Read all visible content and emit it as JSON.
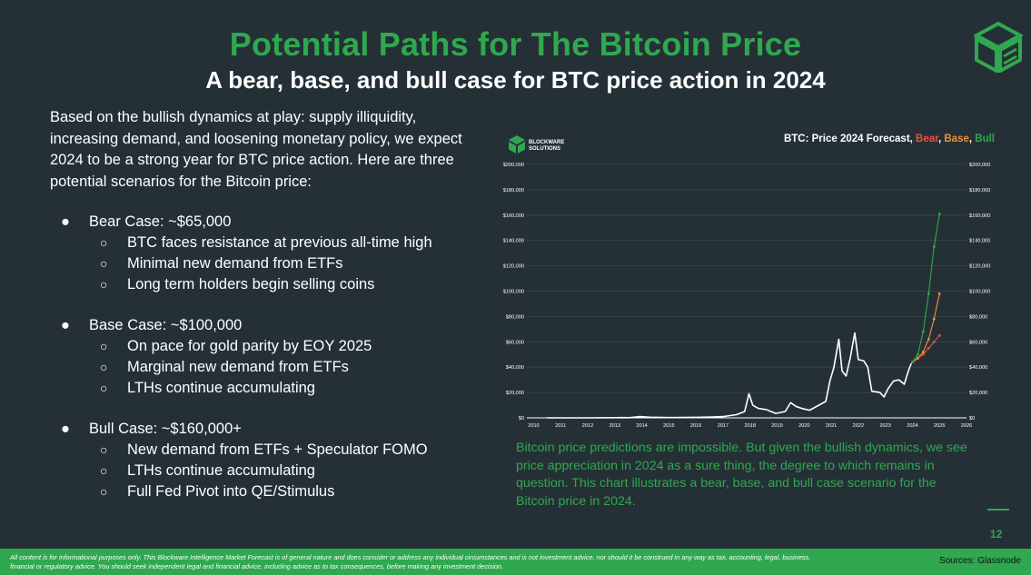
{
  "header": {
    "title": "Potential Paths for The Bitcoin Price",
    "subtitle": "A bear, base, and bull case for BTC price action in 2024",
    "logo_icon": "blockware-cube-logo-icon"
  },
  "intro": "Based on the bullish dynamics at play: supply illiquidity, increasing demand, and loosening monetary policy, we expect 2024 to be a strong year for BTC price action. Here are three potential scenarios for the Bitcoin price:",
  "cases": [
    {
      "title": "Bear Case: ~$65,000",
      "points": [
        "BTC faces resistance at previous all-time high",
        "Minimal new demand from ETFs",
        "Long term holders begin selling coins"
      ]
    },
    {
      "title": "Base Case: ~$100,000",
      "points": [
        "On pace for gold parity by EOY 2025",
        "Marginal new demand from ETFs",
        "LTHs continue accumulating"
      ]
    },
    {
      "title": "Bull Case: ~$160,000+",
      "points": [
        "New demand from ETFs + Speculator FOMO",
        "LTHs continue accumulating",
        "Full Fed Pivot into QE/Stimulus"
      ]
    }
  ],
  "chart_data": {
    "type": "line",
    "brand": [
      "BLOCKWARE",
      "SOLUTIONS"
    ],
    "title_prefix": "BTC: Price 2024 Forecast, ",
    "title_sep": ", ",
    "yticks": [
      "$0",
      "$20,000",
      "$40,000",
      "$60,000",
      "$80,000",
      "$100,000",
      "$120,000",
      "$140,000",
      "$160,000",
      "$180,000",
      "$200,000"
    ],
    "xticks": [
      "2010",
      "2011",
      "2012",
      "2013",
      "2014",
      "2015",
      "2016",
      "2017",
      "2018",
      "2019",
      "2020",
      "2021",
      "2022",
      "2023",
      "2024",
      "2025",
      "2026"
    ],
    "ylim": [
      0,
      200000
    ],
    "xlim": [
      2009.75,
      2026
    ],
    "grid": true,
    "colors": {
      "historical": "#ffffff",
      "bear": "#e8523f",
      "base": "#f0913a",
      "bull": "#2fa84f",
      "grid": "#3a464c",
      "axis": "#ffffff"
    },
    "series": [
      {
        "name": "",
        "key": "historical",
        "x": [
          2010.5,
          2012.0,
          2013.0,
          2013.3,
          2013.5,
          2013.9,
          2014.3,
          2015.0,
          2015.5,
          2016.0,
          2016.6,
          2017.0,
          2017.5,
          2017.8,
          2017.96,
          2018.1,
          2018.3,
          2018.6,
          2018.95,
          2019.3,
          2019.5,
          2019.7,
          2019.95,
          2020.2,
          2020.5,
          2020.8,
          2020.95,
          2021.1,
          2021.28,
          2021.4,
          2021.55,
          2021.7,
          2021.87,
          2022.0,
          2022.2,
          2022.35,
          2022.5,
          2022.8,
          2022.95,
          2023.1,
          2023.3,
          2023.5,
          2023.7,
          2023.85,
          2023.96
        ],
        "y": [
          0,
          5,
          100,
          200,
          100,
          1000,
          500,
          250,
          280,
          400,
          650,
          1000,
          2500,
          5000,
          19000,
          10000,
          7500,
          6500,
          3500,
          5000,
          12000,
          9000,
          7200,
          6000,
          9500,
          13000,
          29000,
          40000,
          62000,
          37000,
          33000,
          47000,
          67000,
          46000,
          45000,
          40000,
          21000,
          20000,
          16500,
          23000,
          29000,
          30000,
          26500,
          37000,
          43000
        ]
      },
      {
        "name": "Bear",
        "key": "bear",
        "x": [
          2024.0,
          2024.2,
          2024.4,
          2024.6,
          2024.8,
          2025.0
        ],
        "y": [
          44000,
          47000,
          50000,
          55000,
          60000,
          65000
        ]
      },
      {
        "name": "Base",
        "key": "base",
        "x": [
          2024.0,
          2024.2,
          2024.4,
          2024.6,
          2024.8,
          2025.0
        ],
        "y": [
          44000,
          47000,
          52000,
          62000,
          78000,
          98000
        ]
      },
      {
        "name": "Bull",
        "key": "bull",
        "x": [
          2024.0,
          2024.2,
          2024.4,
          2024.6,
          2024.8,
          2025.0
        ],
        "y": [
          44000,
          50000,
          68000,
          98000,
          135000,
          161000
        ]
      }
    ]
  },
  "note": "Bitcoin price predictions are impossible. But given the bullish dynamics, we see price appreciation in 2024 as a sure thing, the degree to which remains in question. This chart illustrates a bear, base, and bull case scenario for the Bitcoin price in 2024.",
  "page_number": "12",
  "footer": {
    "disclaimer": "All content is for informational purposes only. This Blockware Intelligence Market Forecast is of general nature and does consider or address any individual circumstances and is not investment advice, nor should it be construed in any way as tax, accounting, legal, business, financial or regulatory advice. You should seek independent legal and financial advice, including advice as to tax consequences, before making any investment decision.",
    "sources": "Sources: Glassnode"
  }
}
